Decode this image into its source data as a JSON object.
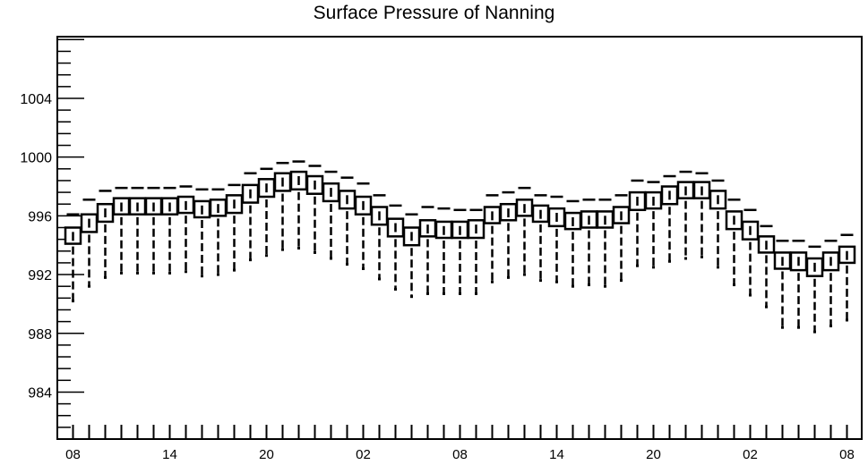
{
  "chart_data": {
    "type": "box",
    "title": "Surface Pressure of Nanning",
    "xlabel": "",
    "ylabel": "",
    "ylim": [
      980.8,
      1008.2
    ],
    "y_ticks": [
      984,
      988,
      992,
      996,
      1000,
      1004
    ],
    "y_tick_labels": [
      "984",
      "988",
      "992",
      "996",
      "1000",
      "1004"
    ],
    "x_tick_labels": [
      "08",
      "14",
      "20",
      "02",
      "08",
      "14",
      "20",
      "02",
      "08"
    ],
    "x_tick_index": [
      0,
      6,
      12,
      18,
      24,
      30,
      36,
      42,
      48
    ],
    "grid": false,
    "legend": "none",
    "colors": {
      "stroke": "#000000",
      "background": "#ffffff"
    },
    "series": [
      {
        "median": [
          994.6,
          995.5,
          996.2,
          996.6,
          996.6,
          996.6,
          996.6,
          996.7,
          996.4,
          996.5,
          996.8,
          997.5,
          997.9,
          998.3,
          998.4,
          998.1,
          997.6,
          997.1,
          996.7,
          996.0,
          995.2,
          994.6,
          995.1,
          995.0,
          995.0,
          995.1,
          996.0,
          996.2,
          996.5,
          996.1,
          995.9,
          995.6,
          995.7,
          995.7,
          996.0,
          997.0,
          997.0,
          997.4,
          997.7,
          997.7,
          997.1,
          995.7,
          995.0,
          994.0,
          992.9,
          992.9,
          992.5,
          992.9,
          993.3
        ],
        "box_low": [
          994.1,
          994.9,
          995.6,
          996.1,
          996.1,
          996.1,
          996.1,
          996.2,
          995.9,
          996.0,
          996.2,
          996.9,
          997.3,
          997.7,
          997.8,
          997.5,
          997.0,
          996.5,
          996.1,
          995.4,
          994.6,
          994.0,
          994.6,
          994.5,
          994.5,
          994.5,
          995.5,
          995.7,
          996.0,
          995.6,
          995.3,
          995.1,
          995.2,
          995.2,
          995.5,
          996.4,
          996.5,
          996.8,
          997.2,
          997.2,
          996.5,
          995.1,
          994.4,
          993.5,
          992.4,
          992.3,
          991.9,
          992.3,
          992.8
        ],
        "box_high": [
          995.2,
          996.1,
          996.8,
          997.2,
          997.2,
          997.2,
          997.2,
          997.3,
          997.0,
          997.1,
          997.4,
          998.1,
          998.5,
          998.9,
          999.0,
          998.7,
          998.2,
          997.7,
          997.3,
          996.6,
          995.8,
          995.2,
          995.7,
          995.6,
          995.6,
          995.7,
          996.6,
          996.8,
          997.1,
          996.7,
          996.5,
          996.2,
          996.3,
          996.3,
          996.6,
          997.6,
          997.6,
          998.0,
          998.3,
          998.3,
          997.7,
          996.3,
          995.6,
          994.6,
          993.5,
          993.5,
          993.1,
          993.5,
          993.9
        ],
        "whisker_low": [
          990.2,
          991.2,
          991.8,
          992.1,
          992.1,
          992.1,
          992.1,
          992.2,
          991.9,
          992.0,
          992.3,
          993.0,
          993.3,
          993.7,
          993.8,
          993.5,
          993.1,
          992.7,
          992.4,
          991.7,
          991.0,
          990.5,
          990.7,
          990.7,
          990.7,
          990.7,
          991.5,
          991.8,
          992.0,
          991.6,
          991.5,
          991.2,
          991.3,
          991.2,
          991.6,
          992.6,
          992.5,
          992.9,
          993.1,
          993.2,
          992.5,
          991.3,
          990.6,
          989.8,
          988.4,
          988.4,
          988.1,
          988.5,
          988.9
        ],
        "whisker_high": [
          996.1,
          997.1,
          997.7,
          997.9,
          997.9,
          997.9,
          997.9,
          998.0,
          997.8,
          997.8,
          998.1,
          998.9,
          999.2,
          999.6,
          999.7,
          999.4,
          999.0,
          998.6,
          998.2,
          997.4,
          996.7,
          996.1,
          996.6,
          996.5,
          996.4,
          996.4,
          997.4,
          997.6,
          997.9,
          997.4,
          997.3,
          997.0,
          997.1,
          997.1,
          997.4,
          998.4,
          998.3,
          998.7,
          999.0,
          998.9,
          998.4,
          997.1,
          996.4,
          995.3,
          994.3,
          994.3,
          993.9,
          994.3,
          994.7
        ]
      }
    ]
  }
}
